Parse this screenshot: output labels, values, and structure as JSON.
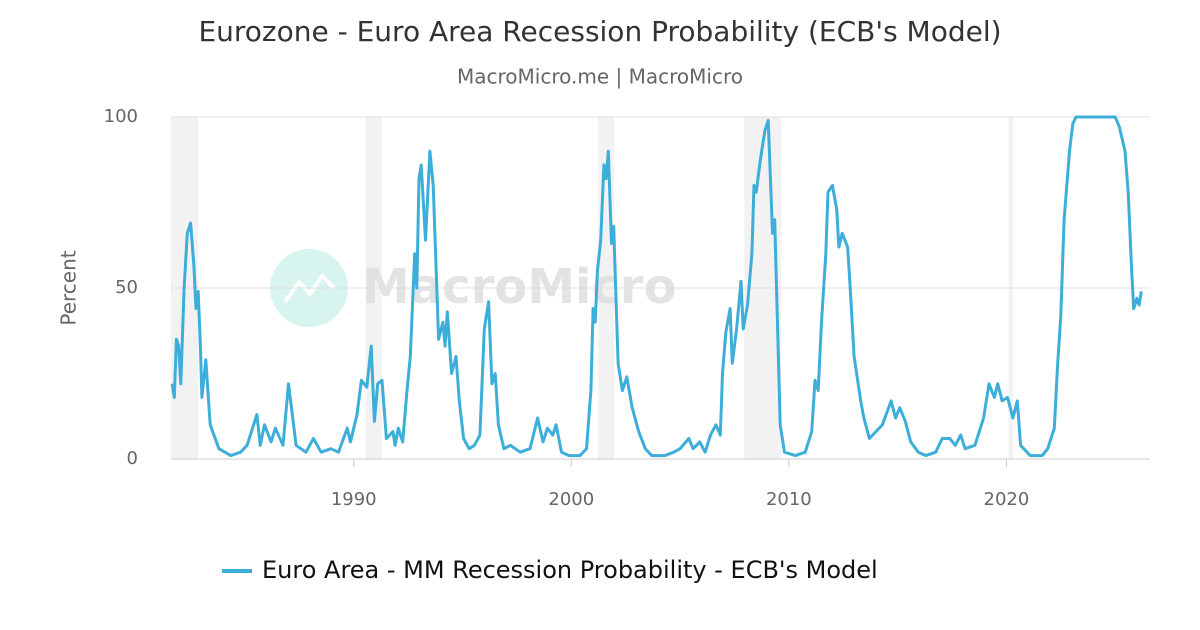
{
  "chart_data": {
    "type": "line",
    "title": "Eurozone - Euro Area Recession Probability (ECB's Model)",
    "subtitle": "MacroMicro.me | MacroMicro",
    "watermark": "MacroMicro",
    "y_label": "Percent",
    "xlim": [
      1981.6,
      2026.6
    ],
    "xticks": [
      1990,
      2000,
      2010,
      2020
    ],
    "ylim": [
      0,
      100
    ],
    "yticks": [
      0,
      50,
      100
    ],
    "grid": true,
    "legend": "bottom",
    "recessions": [
      [
        1981.6,
        1982.86
      ],
      [
        1990.55,
        1991.29
      ],
      [
        2001.24,
        2001.97
      ],
      [
        2007.95,
        2009.65
      ],
      [
        2020.1,
        2020.3
      ]
    ],
    "x": [
      1981.65,
      1981.75,
      1981.85,
      1981.95,
      1982.05,
      1982.2,
      1982.35,
      1982.5,
      1982.65,
      1982.75,
      1982.85,
      1982.95,
      1983.02,
      1983.2,
      1983.4,
      1983.8,
      1984.35,
      1984.8,
      1985.1,
      1985.55,
      1985.7,
      1985.9,
      1986.2,
      1986.4,
      1986.75,
      1987.0,
      1987.35,
      1987.8,
      1988.15,
      1988.5,
      1988.95,
      1989.3,
      1989.7,
      1989.85,
      1990.15,
      1990.35,
      1990.6,
      1990.8,
      1990.95,
      1991.1,
      1991.3,
      1991.5,
      1991.8,
      1991.9,
      1992.05,
      1992.25,
      1992.45,
      1992.6,
      1992.8,
      1992.9,
      1993.0,
      1993.1,
      1993.3,
      1993.5,
      1993.65,
      1993.9,
      1994.1,
      1994.2,
      1994.3,
      1994.5,
      1994.7,
      1994.85,
      1995.05,
      1995.3,
      1995.55,
      1995.8,
      1996.0,
      1996.2,
      1996.35,
      1996.5,
      1996.65,
      1996.9,
      1997.2,
      1997.65,
      1998.1,
      1998.45,
      1998.7,
      1998.9,
      1999.15,
      1999.3,
      1999.55,
      1999.9,
      2000.4,
      2000.7,
      2000.9,
      2001.0,
      2001.1,
      2001.2,
      2001.35,
      2001.5,
      2001.6,
      2001.7,
      2001.85,
      2001.95,
      2002.15,
      2002.35,
      2002.55,
      2002.8,
      2003.1,
      2003.4,
      2003.7,
      2004.3,
      2004.7,
      2005.0,
      2005.4,
      2005.6,
      2005.9,
      2006.15,
      2006.4,
      2006.65,
      2006.85,
      2006.95,
      2007.1,
      2007.3,
      2007.4,
      2007.6,
      2007.8,
      2007.9,
      2008.1,
      2008.3,
      2008.4,
      2008.5,
      2008.7,
      2008.9,
      2009.05,
      2009.25,
      2009.35,
      2009.6,
      2009.8,
      2010.3,
      2010.75,
      2011.05,
      2011.2,
      2011.35,
      2011.5,
      2011.7,
      2011.8,
      2012.0,
      2012.2,
      2012.3,
      2012.45,
      2012.7,
      2012.8,
      2013.0,
      2013.3,
      2013.45,
      2013.7,
      2014.0,
      2014.3,
      2014.7,
      2014.9,
      2015.1,
      2015.35,
      2015.6,
      2015.95,
      2016.3,
      2016.75,
      2017.05,
      2017.4,
      2017.65,
      2017.9,
      2018.1,
      2018.55,
      2018.95,
      2019.2,
      2019.45,
      2019.6,
      2019.8,
      2020.05,
      2020.3,
      2020.5,
      2020.65,
      2021.1,
      2021.65,
      2021.9,
      2022.2,
      2022.35,
      2022.5,
      2022.65,
      2022.9,
      2023.05,
      2023.2,
      2025.0,
      2025.2,
      2025.45,
      2025.6,
      2025.75,
      2025.85,
      2026.0,
      2026.1,
      2026.2
    ],
    "series": [
      {
        "name": "Euro Area - MM Recession Probability - ECB's Model",
        "color": "#3daed9",
        "values": [
          22,
          18,
          35,
          33,
          22,
          50,
          66,
          69,
          57,
          44,
          49,
          33,
          18,
          29,
          10,
          3,
          1,
          2,
          4,
          13,
          4,
          10,
          5,
          9,
          4,
          22,
          4,
          2,
          6,
          2,
          3,
          2,
          9,
          5,
          13,
          23,
          21,
          33,
          11,
          22,
          23,
          6,
          8,
          4,
          9,
          5,
          20,
          30,
          60,
          50,
          82,
          86,
          64,
          90,
          80,
          35,
          40,
          33,
          43,
          25,
          30,
          17,
          6,
          3,
          4,
          7,
          38,
          46,
          22,
          25,
          10,
          3,
          4,
          2,
          3,
          12,
          5,
          9,
          7,
          10,
          2,
          1,
          1,
          3,
          20,
          44,
          40,
          55,
          64,
          86,
          82,
          90,
          63,
          68,
          28,
          20,
          24,
          15,
          8,
          3,
          1,
          1,
          2,
          3,
          6,
          3,
          5,
          2,
          7,
          10,
          7,
          25,
          37,
          44,
          28,
          38,
          52,
          38,
          45,
          60,
          80,
          78,
          88,
          96,
          99,
          66,
          70,
          10,
          2,
          1,
          2,
          8,
          23,
          20,
          40,
          60,
          78,
          80,
          73,
          62,
          66,
          62,
          52,
          30,
          17,
          12,
          6,
          8,
          10,
          17,
          12,
          15,
          11,
          5,
          2,
          1,
          2,
          6,
          6,
          4,
          7,
          3,
          4,
          12,
          22,
          18,
          22,
          17,
          18,
          12,
          17,
          4,
          1,
          1,
          3,
          9,
          27,
          42,
          70,
          90,
          98,
          100,
          100,
          97,
          90,
          78,
          56,
          44,
          47,
          45,
          49
        ]
      }
    ]
  }
}
